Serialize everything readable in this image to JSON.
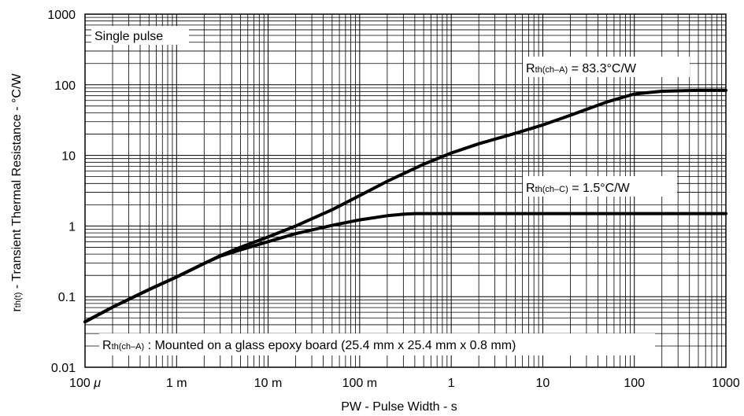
{
  "chart_data": {
    "type": "line",
    "title": "",
    "xlabel": "PW - Pulse Width - s",
    "ylabel_main": "r",
    "ylabel_sub": "th(t)",
    "ylabel_rest": " - Transient Thermal Resistance - °C/W",
    "x_scale": "log",
    "y_scale": "log",
    "xlim": [
      0.0001,
      1000
    ],
    "ylim": [
      0.01,
      1000
    ],
    "grid": true,
    "x_ticks": [
      {
        "value": 0.0001,
        "label_num": "100 ",
        "label_unit": "μ"
      },
      {
        "value": 0.001,
        "label_num": "1 m",
        "label_unit": ""
      },
      {
        "value": 0.01,
        "label_num": "10 m",
        "label_unit": ""
      },
      {
        "value": 0.1,
        "label_num": "100 m",
        "label_unit": ""
      },
      {
        "value": 1,
        "label_num": "1",
        "label_unit": ""
      },
      {
        "value": 10,
        "label_num": "10",
        "label_unit": ""
      },
      {
        "value": 100,
        "label_num": "100",
        "label_unit": ""
      },
      {
        "value": 1000,
        "label_num": "1000",
        "label_unit": ""
      }
    ],
    "y_ticks": [
      {
        "value": 0.01,
        "label": "0.01"
      },
      {
        "value": 0.1,
        "label": "0.1"
      },
      {
        "value": 1,
        "label": "1"
      },
      {
        "value": 10,
        "label": "10"
      },
      {
        "value": 100,
        "label": "100"
      },
      {
        "value": 1000,
        "label": "1000"
      }
    ],
    "series": [
      {
        "x": [
          0.0001,
          0.0002,
          0.0005,
          0.001,
          0.002,
          0.003,
          0.005,
          0.01,
          0.02,
          0.05,
          0.1,
          0.2,
          0.5,
          1,
          2,
          5,
          10,
          20,
          50,
          100,
          200,
          500,
          1000
        ],
        "y": [
          0.044,
          0.071,
          0.126,
          0.19,
          0.295,
          0.38,
          0.5,
          0.7,
          1.0,
          1.7,
          2.7,
          4.3,
          7.5,
          10.8,
          14.6,
          20.5,
          27.0,
          37.0,
          57.0,
          74.0,
          81.0,
          83.3,
          83.3
        ]
      },
      {
        "x": [
          0.0001,
          0.0002,
          0.0005,
          0.001,
          0.002,
          0.003,
          0.005,
          0.01,
          0.02,
          0.05,
          0.1,
          0.2,
          0.3,
          0.4,
          0.5,
          1,
          10,
          100,
          1000
        ],
        "y": [
          0.044,
          0.071,
          0.126,
          0.19,
          0.295,
          0.375,
          0.46,
          0.6,
          0.78,
          1.02,
          1.22,
          1.4,
          1.47,
          1.5,
          1.5,
          1.5,
          1.5,
          1.5,
          1.5
        ]
      }
    ],
    "annotations": {
      "single_pulse": "Single pulse",
      "rth_a_main": "R",
      "rth_a_sub": "th(ch–A)",
      "rth_a_value": " = 83.3°C/W",
      "rth_c_main": "R",
      "rth_c_sub": "th(ch–C)",
      "rth_c_value": " = 1.5°C/W",
      "note_main": "R",
      "note_sub": "th(ch–A)",
      "note_rest": " : Mounted on a glass epoxy board (25.4 mm x 25.4 mm x 0.8 mm)"
    }
  }
}
